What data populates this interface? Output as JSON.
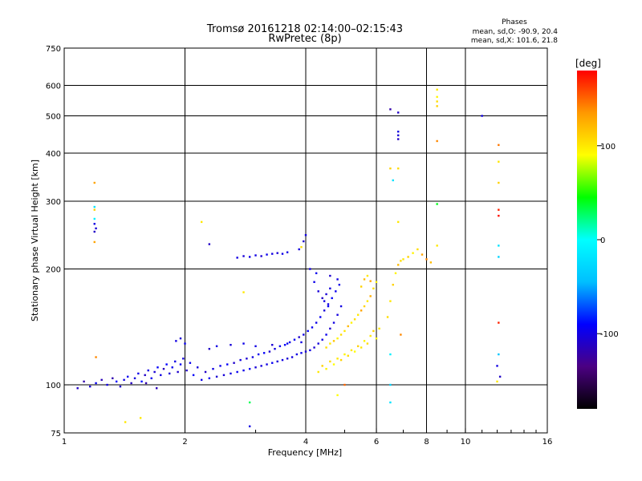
{
  "chart_data": {
    "type": "scatter",
    "title": "Tromsø 20161218 02:14:00–02:15:43",
    "subtitle": "RwPretec (8p)",
    "xlabel": "Frequency [MHz]",
    "ylabel": "Stationary phase Virtual Height [km]",
    "x_scale": "log",
    "y_scale": "log",
    "xlim": [
      1,
      16
    ],
    "ylim": [
      75,
      750
    ],
    "x_ticks": [
      "1",
      "2",
      "4",
      "6",
      "8",
      "10",
      "16"
    ],
    "y_ticks": [
      "75",
      "100",
      "200",
      "300",
      "400",
      "500",
      "600",
      "750"
    ],
    "phase_box": {
      "title": "Phases",
      "line_o": "mean, sd,O: -90.9, 20.4",
      "line_x": "mean, sd,X: 101.6, 21.8"
    },
    "colorbar": {
      "label": "[deg]",
      "ticks": [
        "100",
        "0",
        "-100"
      ],
      "range": [
        -180,
        180
      ],
      "colors": [
        "#000000",
        "#4b0082",
        "#0000ff",
        "#00bfff",
        "#00ffff",
        "#00ff00",
        "#ffff00",
        "#ff9900",
        "#ff0000"
      ]
    },
    "series": [
      {
        "name": "O",
        "marker": "square",
        "points": [
          [
            1.08,
            98,
            -110
          ],
          [
            1.12,
            102,
            -120
          ],
          [
            1.16,
            99,
            -105
          ],
          [
            1.2,
            101,
            -95
          ],
          [
            1.24,
            103,
            -115
          ],
          [
            1.28,
            100,
            -100
          ],
          [
            1.32,
            104,
            -118
          ],
          [
            1.35,
            102,
            -90
          ],
          [
            1.38,
            99,
            -108
          ],
          [
            1.41,
            103,
            -100
          ],
          [
            1.44,
            105,
            -95
          ],
          [
            1.47,
            101,
            -112
          ],
          [
            1.5,
            104,
            -102
          ],
          [
            1.53,
            107,
            -98
          ],
          [
            1.56,
            102,
            -88
          ],
          [
            1.59,
            106,
            -110
          ],
          [
            1.62,
            109,
            -100
          ],
          [
            1.65,
            104,
            -95
          ],
          [
            1.68,
            108,
            -105
          ],
          [
            1.71,
            111,
            -92
          ],
          [
            1.74,
            106,
            -100
          ],
          [
            1.77,
            110,
            -115
          ],
          [
            1.8,
            113,
            -90
          ],
          [
            1.83,
            107,
            -104
          ],
          [
            1.86,
            111,
            -96
          ],
          [
            1.89,
            115,
            -100
          ],
          [
            1.92,
            108,
            -108
          ],
          [
            1.95,
            113,
            -94
          ],
          [
            1.98,
            117,
            -102
          ],
          [
            2.02,
            109,
            -110
          ],
          [
            2.06,
            114,
            -96
          ],
          [
            2.1,
            106,
            -92
          ],
          [
            2.15,
            111,
            -104
          ],
          [
            2.2,
            103,
            -98
          ],
          [
            2.25,
            108,
            -110
          ],
          [
            2.3,
            104,
            -94
          ],
          [
            2.35,
            110,
            -100
          ],
          [
            2.4,
            105,
            -106
          ],
          [
            2.45,
            112,
            -96
          ],
          [
            2.5,
            106,
            -104
          ],
          [
            2.55,
            113,
            -92
          ],
          [
            2.6,
            107,
            -100
          ],
          [
            2.65,
            114,
            -108
          ],
          [
            2.7,
            108,
            -95
          ],
          [
            2.75,
            116,
            -102
          ],
          [
            2.8,
            109,
            -98
          ],
          [
            2.85,
            117,
            -106
          ],
          [
            2.9,
            110,
            -94
          ],
          [
            2.95,
            118,
            -100
          ],
          [
            3.0,
            111,
            -104
          ],
          [
            3.05,
            120,
            -96
          ],
          [
            3.1,
            112,
            -102
          ],
          [
            3.15,
            121,
            -92
          ],
          [
            3.2,
            113,
            -100
          ],
          [
            3.25,
            122,
            -108
          ],
          [
            3.3,
            114,
            -94
          ],
          [
            3.35,
            124,
            -100
          ],
          [
            3.4,
            115,
            -104
          ],
          [
            3.45,
            126,
            -96
          ],
          [
            3.5,
            116,
            -100
          ],
          [
            3.55,
            127,
            -92
          ],
          [
            3.6,
            117,
            -106
          ],
          [
            3.65,
            129,
            -98
          ],
          [
            3.7,
            118,
            -102
          ],
          [
            3.75,
            131,
            -94
          ],
          [
            3.8,
            120,
            -100
          ],
          [
            3.85,
            133,
            -108
          ],
          [
            3.9,
            121,
            -96
          ],
          [
            3.95,
            135,
            -100
          ],
          [
            4.0,
            122,
            -104
          ],
          [
            4.05,
            138,
            -92
          ],
          [
            4.1,
            123,
            -100
          ],
          [
            4.15,
            141,
            -96
          ],
          [
            4.2,
            125,
            -106
          ],
          [
            4.25,
            145,
            -98
          ],
          [
            4.3,
            128,
            -102
          ],
          [
            4.35,
            150,
            -94
          ],
          [
            4.4,
            131,
            -100
          ],
          [
            4.45,
            156,
            -104
          ],
          [
            4.5,
            135,
            -96
          ],
          [
            4.55,
            162,
            -100
          ],
          [
            4.6,
            140,
            -108
          ],
          [
            4.65,
            168,
            -92
          ],
          [
            4.7,
            145,
            -100
          ],
          [
            4.75,
            175,
            -96
          ],
          [
            4.8,
            152,
            -102
          ],
          [
            4.85,
            182,
            -98
          ],
          [
            4.9,
            160,
            -100
          ],
          [
            4.4,
            168,
            -110
          ],
          [
            4.45,
            165,
            -100
          ],
          [
            4.5,
            172,
            -105
          ],
          [
            4.55,
            160,
            -95
          ],
          [
            4.6,
            178,
            -102
          ],
          [
            4.2,
            185,
            -98
          ],
          [
            4.3,
            175,
            -104
          ],
          [
            4.1,
            200,
            -100
          ],
          [
            4.25,
            195,
            -96
          ],
          [
            4.6,
            192,
            -108
          ],
          [
            4.8,
            188,
            -100
          ],
          [
            1.9,
            130,
            -100
          ],
          [
            1.95,
            132,
            -105
          ],
          [
            2.0,
            128,
            -95
          ],
          [
            2.3,
            124,
            -110
          ],
          [
            2.4,
            126,
            -100
          ],
          [
            2.6,
            127,
            -104
          ],
          [
            2.8,
            128,
            -98
          ],
          [
            3.0,
            126,
            -100
          ],
          [
            3.3,
            127,
            -106
          ],
          [
            3.6,
            128,
            -96
          ],
          [
            3.9,
            129,
            -100
          ],
          [
            2.3,
            232,
            -110
          ],
          [
            2.7,
            214,
            -100
          ],
          [
            2.8,
            216,
            -104
          ],
          [
            2.9,
            215,
            -98
          ],
          [
            3.0,
            217,
            -100
          ],
          [
            3.1,
            216,
            -106
          ],
          [
            3.2,
            218,
            -96
          ],
          [
            3.3,
            219,
            -100
          ],
          [
            3.4,
            220,
            -104
          ],
          [
            3.5,
            219,
            -98
          ],
          [
            3.6,
            221,
            -100
          ],
          [
            3.85,
            225,
            -102
          ],
          [
            3.95,
            236,
            -108
          ],
          [
            4.0,
            245,
            -100
          ],
          [
            1.19,
            250,
            -110
          ],
          [
            1.2,
            255,
            -105
          ],
          [
            1.19,
            262,
            -100
          ],
          [
            6.5,
            520,
            -120
          ],
          [
            6.8,
            510,
            -110
          ],
          [
            6.8,
            455,
            -100
          ],
          [
            6.8,
            445,
            -105
          ],
          [
            6.8,
            435,
            -110
          ],
          [
            11.0,
            500,
            -100
          ],
          [
            12.2,
            105,
            -110
          ],
          [
            12.0,
            112,
            -100
          ],
          [
            2.9,
            78,
            -100
          ],
          [
            1.6,
            101,
            -120
          ],
          [
            1.7,
            98,
            -115
          ]
        ]
      },
      {
        "name": "X",
        "marker": "square",
        "points": [
          [
            4.3,
            108,
            100
          ],
          [
            4.4,
            112,
            110
          ],
          [
            4.5,
            110,
            95
          ],
          [
            4.6,
            115,
            105
          ],
          [
            4.7,
            113,
            90
          ],
          [
            4.8,
            117,
            100
          ],
          [
            4.9,
            116,
            110
          ],
          [
            5.0,
            120,
            95
          ],
          [
            5.1,
            119,
            105
          ],
          [
            5.2,
            123,
            100
          ],
          [
            5.3,
            122,
            90
          ],
          [
            5.4,
            126,
            110
          ],
          [
            5.5,
            125,
            100
          ],
          [
            5.6,
            130,
            95
          ],
          [
            5.7,
            128,
            105
          ],
          [
            5.8,
            134,
            100
          ],
          [
            5.9,
            138,
            110
          ],
          [
            6.0,
            132,
            95
          ],
          [
            6.1,
            140,
            100
          ],
          [
            4.5,
            125,
            105
          ],
          [
            4.6,
            128,
            100
          ],
          [
            4.7,
            130,
            115
          ],
          [
            4.8,
            132,
            95
          ],
          [
            4.9,
            135,
            105
          ],
          [
            5.0,
            138,
            100
          ],
          [
            5.1,
            142,
            120
          ],
          [
            5.2,
            145,
            95
          ],
          [
            5.3,
            148,
            105
          ],
          [
            5.4,
            152,
            100
          ],
          [
            5.5,
            156,
            130
          ],
          [
            5.6,
            160,
            110
          ],
          [
            5.7,
            165,
            100
          ],
          [
            5.8,
            170,
            125
          ],
          [
            5.9,
            178,
            105
          ],
          [
            6.0,
            185,
            95
          ],
          [
            5.5,
            180,
            110
          ],
          [
            5.6,
            188,
            120
          ],
          [
            5.7,
            192,
            100
          ],
          [
            5.8,
            186,
            130
          ],
          [
            6.4,
            150,
            105
          ],
          [
            6.5,
            165,
            100
          ],
          [
            6.6,
            182,
            110
          ],
          [
            6.7,
            195,
            95
          ],
          [
            6.8,
            205,
            120
          ],
          [
            6.9,
            210,
            105
          ],
          [
            7.0,
            212,
            100
          ],
          [
            7.2,
            215,
            110
          ],
          [
            7.4,
            220,
            95
          ],
          [
            7.6,
            225,
            105
          ],
          [
            7.8,
            218,
            130
          ],
          [
            8.0,
            212,
            140
          ],
          [
            8.2,
            208,
            120
          ],
          [
            8.5,
            585,
            100
          ],
          [
            8.5,
            560,
            95
          ],
          [
            8.5,
            545,
            105
          ],
          [
            8.5,
            530,
            110
          ],
          [
            8.5,
            430,
            140
          ],
          [
            12.1,
            420,
            145
          ],
          [
            12.1,
            380,
            100
          ],
          [
            12.1,
            335,
            110
          ],
          [
            12.1,
            285,
            170
          ],
          [
            12.1,
            275,
            175
          ],
          [
            12.1,
            230,
            -20
          ],
          [
            12.1,
            215,
            -30
          ],
          [
            12.1,
            145,
            170
          ],
          [
            12.1,
            120,
            -40
          ],
          [
            12.0,
            102,
            100
          ],
          [
            6.5,
            365,
            110
          ],
          [
            6.8,
            365,
            105
          ],
          [
            6.6,
            340,
            -20
          ],
          [
            6.8,
            265,
            100
          ],
          [
            8.5,
            295,
            40
          ],
          [
            8.5,
            230,
            100
          ],
          [
            6.5,
            90,
            -20
          ],
          [
            6.5,
            100,
            -30
          ],
          [
            6.9,
            135,
            140
          ],
          [
            6.5,
            120,
            -10
          ],
          [
            1.19,
            335,
            130
          ],
          [
            1.19,
            290,
            -20
          ],
          [
            1.19,
            285,
            110
          ],
          [
            1.19,
            270,
            -10
          ],
          [
            1.19,
            235,
            130
          ],
          [
            1.2,
            118,
            140
          ],
          [
            1.42,
            80,
            100
          ],
          [
            1.55,
            82,
            100
          ],
          [
            2.2,
            265,
            100
          ],
          [
            2.8,
            174,
            100
          ],
          [
            2.9,
            90,
            30
          ],
          [
            3.9,
            228,
            105
          ],
          [
            4.8,
            94,
            90
          ],
          [
            5.0,
            100,
            150
          ]
        ]
      }
    ]
  }
}
